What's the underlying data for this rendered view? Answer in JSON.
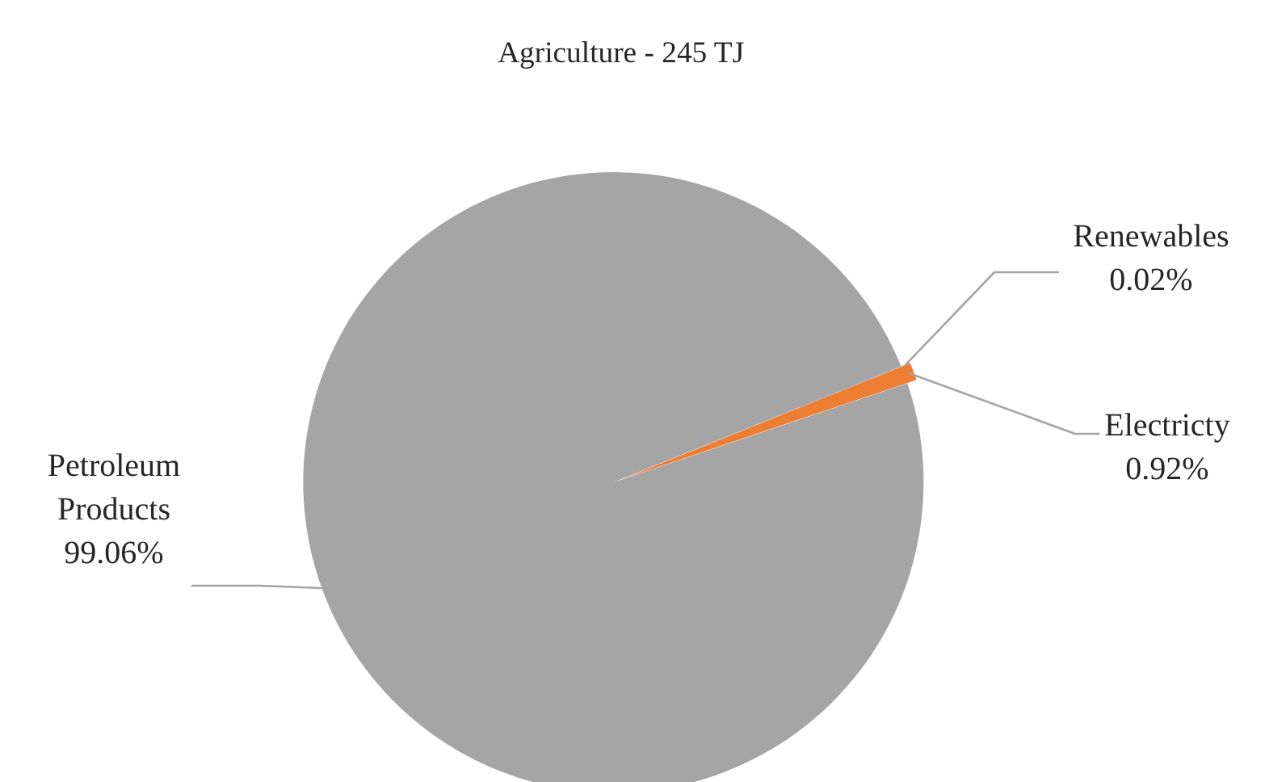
{
  "chart_data": {
    "type": "pie",
    "title": "Agriculture - 245 TJ",
    "categories": [
      "Renewables",
      "Electricty",
      "Petroleum Products"
    ],
    "values": [
      0.02,
      0.92,
      99.06
    ],
    "colors": [
      "#4472c4",
      "#ed7d31",
      "#a5a5a5"
    ],
    "value_labels": [
      "0.02%",
      "0.92%",
      "99.06%"
    ]
  }
}
